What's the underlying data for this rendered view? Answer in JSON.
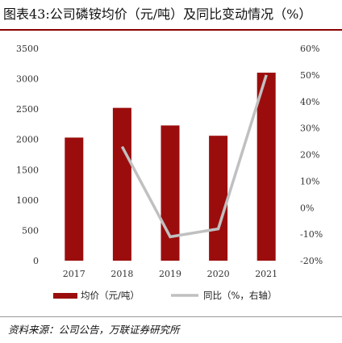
{
  "title": "图表43:公司磷铵均价（元/吨）及同比变动情况（%）",
  "source": "资料来源：公司公告，万联证券研究所",
  "chart_data": {
    "type": "bar",
    "categories": [
      "2017",
      "2018",
      "2019",
      "2020",
      "2021"
    ],
    "series": [
      {
        "name": "均价（元/吨）",
        "type": "bar",
        "axis": "left",
        "color": "#9b0d0d",
        "values": [
          2030,
          2520,
          2230,
          2060,
          3100
        ]
      },
      {
        "name": "同比（%，右轴）",
        "type": "line",
        "axis": "right",
        "color": "#c0c0c0",
        "values": [
          null,
          23,
          -11,
          -8,
          50
        ]
      }
    ],
    "yleft": {
      "ylim": [
        0,
        3500
      ],
      "ticks": [
        0,
        500,
        1000,
        1500,
        2000,
        2500,
        3000,
        3500
      ]
    },
    "yright": {
      "ylim": [
        -20,
        60
      ],
      "ticks": [
        -20,
        -10,
        0,
        10,
        20,
        30,
        40,
        50,
        60
      ],
      "tick_labels": [
        "-20%",
        "-10%",
        "0%",
        "10%",
        "20%",
        "30%",
        "40%",
        "50%",
        "60%"
      ]
    },
    "legend_position": "bottom",
    "grid": false
  }
}
